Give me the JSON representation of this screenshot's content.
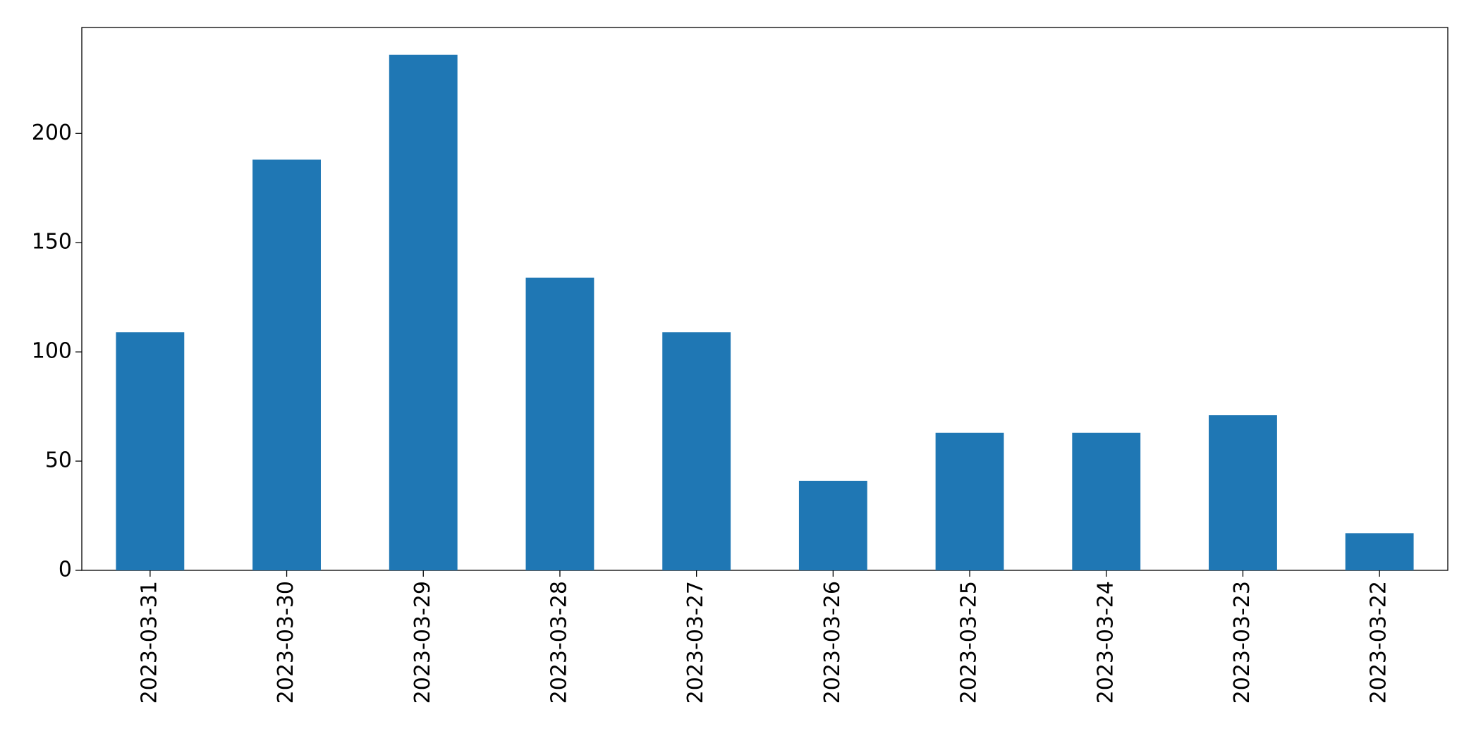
{
  "chart_data": {
    "type": "bar",
    "categories": [
      "2023-03-31",
      "2023-03-30",
      "2023-03-29",
      "2023-03-28",
      "2023-03-27",
      "2023-03-26",
      "2023-03-25",
      "2023-03-24",
      "2023-03-23",
      "2023-03-22"
    ],
    "values": [
      109,
      188,
      236,
      134,
      109,
      41,
      63,
      63,
      71,
      17
    ],
    "color": "#1f77b4",
    "ylim": [
      0,
      248.5
    ],
    "yticks": [
      0,
      50,
      100,
      150,
      200
    ],
    "grid": false
  }
}
